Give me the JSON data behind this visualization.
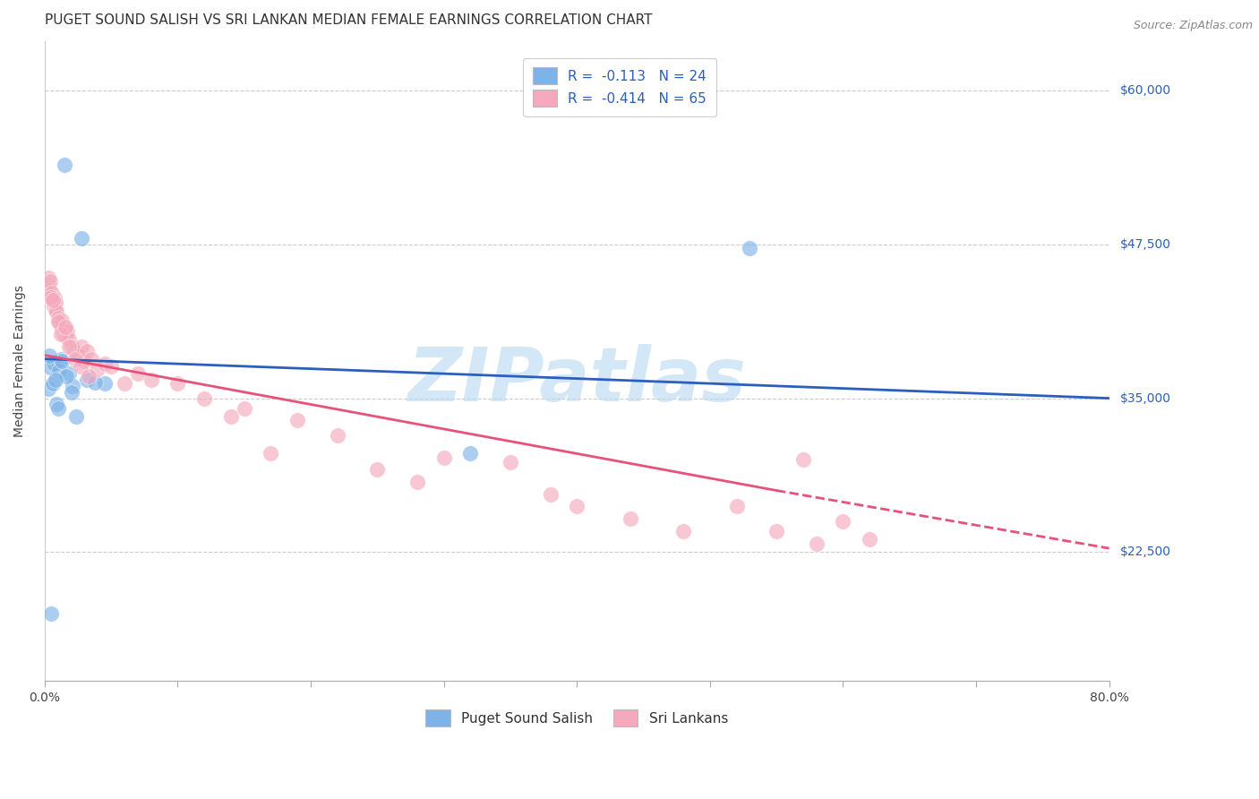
{
  "title": "PUGET SOUND SALISH VS SRI LANKAN MEDIAN FEMALE EARNINGS CORRELATION CHART",
  "source": "Source: ZipAtlas.com",
  "ylabel": "Median Female Earnings",
  "y_ticks": [
    22500,
    35000,
    47500,
    60000
  ],
  "y_tick_labels": [
    "$22,500",
    "$35,000",
    "$47,500",
    "$60,000"
  ],
  "x_min": 0.0,
  "x_max": 80.0,
  "y_min": 12000,
  "y_max": 64000,
  "watermark": "ZIPatlas",
  "blue_color": "#7EB3E8",
  "pink_color": "#F4AABC",
  "trend_blue": "#2B5FBF",
  "trend_pink": "#E8527A",
  "blue_scatter_x": [
    1.5,
    2.8,
    0.4,
    0.7,
    1.2,
    1.8,
    3.2,
    0.3,
    0.9,
    0.6,
    1.1,
    2.1,
    4.5,
    0.5,
    1.6,
    2.4,
    0.8,
    1.3,
    53.0,
    0.35,
    2.0,
    1.0,
    3.8,
    32.0
  ],
  "blue_scatter_y": [
    54000,
    48000,
    37500,
    37800,
    38200,
    37000,
    36500,
    35800,
    34500,
    36200,
    37200,
    36000,
    36200,
    17500,
    36800,
    33500,
    36500,
    38000,
    47200,
    38500,
    35500,
    34200,
    36300,
    30500
  ],
  "pink_scatter_x": [
    0.2,
    0.25,
    0.3,
    0.35,
    0.4,
    0.5,
    0.55,
    0.6,
    0.7,
    0.75,
    0.8,
    0.85,
    0.9,
    1.0,
    1.1,
    1.2,
    1.3,
    1.4,
    1.5,
    1.6,
    1.7,
    1.8,
    2.0,
    2.2,
    2.5,
    2.8,
    3.0,
    3.2,
    3.5,
    4.0,
    4.5,
    5.0,
    6.0,
    7.0,
    8.0,
    10.0,
    12.0,
    14.0,
    15.0,
    17.0,
    19.0,
    22.0,
    25.0,
    28.0,
    30.0,
    35.0,
    38.0,
    40.0,
    44.0,
    48.0,
    52.0,
    55.0,
    57.0,
    60.0,
    62.0,
    0.45,
    0.65,
    1.05,
    1.25,
    1.55,
    1.85,
    2.3,
    2.7,
    3.3,
    58.0
  ],
  "pink_scatter_y": [
    43500,
    44200,
    44800,
    43800,
    44500,
    43200,
    43600,
    43000,
    42500,
    43100,
    42200,
    42800,
    42000,
    41500,
    41200,
    40800,
    41300,
    40200,
    40600,
    40000,
    40400,
    39800,
    39200,
    38800,
    38500,
    39200,
    38000,
    38800,
    38200,
    37400,
    37800,
    37600,
    36200,
    37000,
    36500,
    36200,
    35000,
    33500,
    34200,
    30500,
    33200,
    32000,
    29200,
    28200,
    30200,
    29800,
    27200,
    26200,
    25200,
    24200,
    26200,
    24200,
    30000,
    25000,
    23500,
    43200,
    43000,
    41200,
    40200,
    40800,
    39200,
    38200,
    37600,
    36800,
    23200
  ],
  "blue_trend_x0": 0.0,
  "blue_trend_x1": 80.0,
  "blue_trend_y0": 38200,
  "blue_trend_y1": 35000,
  "pink_solid_x0": 0.0,
  "pink_solid_x1": 55.0,
  "pink_solid_y0": 38500,
  "pink_solid_y1": 27500,
  "pink_dash_x0": 55.0,
  "pink_dash_x1": 80.0,
  "pink_dash_y0": 27500,
  "pink_dash_y1": 22800,
  "title_fontsize": 11,
  "source_fontsize": 9,
  "axis_label_fontsize": 10,
  "tick_fontsize": 10,
  "legend_fontsize": 11
}
